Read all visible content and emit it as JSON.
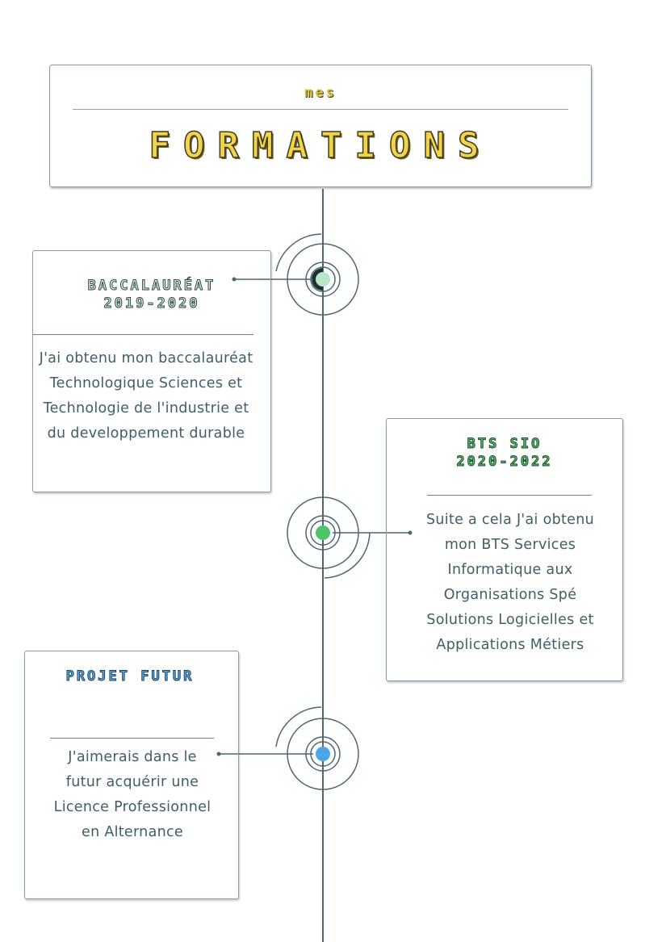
{
  "header": {
    "subtitle": "mes",
    "title": "FORMATIONS"
  },
  "items": [
    {
      "title_line1": "BACCALAURÉAT",
      "title_line2": "2019-2020",
      "description": "J'ai obtenu mon baccalauréat Technologique Sciences et Technologie de l'industrie et du developpement durable",
      "dot_color": "#b8e6c9",
      "title_color": "#d6f0de"
    },
    {
      "title_line1": "BTS SIO",
      "title_line2": "2020-2022",
      "description": "Suite a cela J'ai obtenu mon BTS Services Informatique aux Organisations Spé Solutions Logicielles et Applications Métiers",
      "dot_color": "#4cc46a",
      "title_color": "#57c26c"
    },
    {
      "title_line1": "PROJET FUTUR",
      "title_line2": "",
      "description": "J'aimerais dans le futur acquérir une Licence Professionnel en Alternance",
      "dot_color": "#4aa6e8",
      "title_color": "#5aaee6"
    }
  ],
  "colors": {
    "accent_yellow": "#f2d44a",
    "line": "#4d6770"
  }
}
